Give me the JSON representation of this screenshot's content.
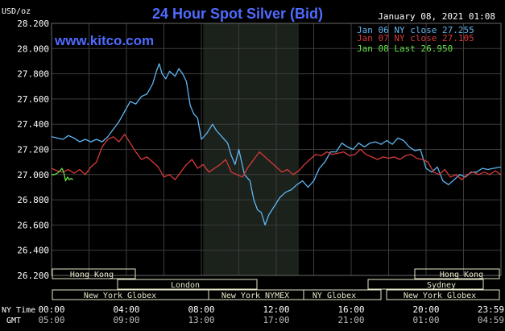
{
  "header": {
    "unit": "USD/oz",
    "title": "24 Hour Spot Silver (Bid)",
    "timestamp": "January 08, 2021 01:08",
    "watermark": "www.kitco.com"
  },
  "legend": [
    {
      "text": "Jan 06 NY close 27.255",
      "color": "#5fb6f2"
    },
    {
      "text": "Jan 07 NY close 27.105",
      "color": "#d63a3a"
    },
    {
      "text": "Jan 08 Last 26.950",
      "color": "#66e04a"
    }
  ],
  "axis": {
    "y_ticks": [
      "28.200",
      "28.000",
      "27.800",
      "27.600",
      "27.400",
      "27.200",
      "27.000",
      "26.800",
      "26.600",
      "26.400",
      "26.200"
    ],
    "ny_time_label": "NY Time",
    "gmt_label": "GMT",
    "ny_times": [
      "00:00",
      "04:00",
      "08:00",
      "12:00",
      "16:00",
      "20:00",
      "23:59"
    ],
    "gmt_times": [
      "05:00",
      "09:00",
      "13:00",
      "17:00",
      "21:00",
      "01:00",
      "04:59"
    ]
  },
  "sessions": {
    "hong_kong_left": "Hong Kong",
    "hong_kong_right": "Hong Kong",
    "london": "London",
    "sydney": "Sydney",
    "ny_globex_left": "New York Globex",
    "ny_nymex": "New York NYMEX",
    "ny_globex_mid": "NY Globex",
    "ny_globex_right": "New York Globex"
  },
  "colors": {
    "background": "#000000",
    "grid": "#3c3c3c",
    "title": "#4f6bff",
    "highlight": "#1b211b",
    "session_box": "#e6e6c8"
  },
  "chart_data": {
    "type": "line",
    "x_unit": "hours since 00:00 NY time",
    "xlim": [
      0,
      24
    ],
    "ylim": [
      26.2,
      28.2
    ],
    "grid": true,
    "highlight_hours": [
      8.1,
      13.2
    ],
    "series": [
      {
        "name": "Jan 06",
        "color": "#5fb6f2",
        "points": [
          [
            0,
            27.3
          ],
          [
            0.3,
            27.29
          ],
          [
            0.6,
            27.28
          ],
          [
            0.9,
            27.31
          ],
          [
            1.2,
            27.29
          ],
          [
            1.5,
            27.26
          ],
          [
            1.8,
            27.28
          ],
          [
            2.1,
            27.26
          ],
          [
            2.4,
            27.28
          ],
          [
            2.7,
            27.26
          ],
          [
            3.0,
            27.3
          ],
          [
            3.3,
            27.36
          ],
          [
            3.6,
            27.42
          ],
          [
            3.9,
            27.5
          ],
          [
            4.2,
            27.58
          ],
          [
            4.5,
            27.56
          ],
          [
            4.8,
            27.62
          ],
          [
            5.1,
            27.64
          ],
          [
            5.4,
            27.72
          ],
          [
            5.6,
            27.82
          ],
          [
            5.75,
            27.88
          ],
          [
            5.9,
            27.8
          ],
          [
            6.1,
            27.76
          ],
          [
            6.3,
            27.82
          ],
          [
            6.6,
            27.78
          ],
          [
            6.8,
            27.84
          ],
          [
            7.0,
            27.8
          ],
          [
            7.2,
            27.74
          ],
          [
            7.4,
            27.55
          ],
          [
            7.6,
            27.48
          ],
          [
            7.8,
            27.45
          ],
          [
            8.0,
            27.28
          ],
          [
            8.3,
            27.33
          ],
          [
            8.6,
            27.4
          ],
          [
            8.8,
            27.35
          ],
          [
            9.1,
            27.3
          ],
          [
            9.4,
            27.25
          ],
          [
            9.6,
            27.15
          ],
          [
            9.8,
            27.08
          ],
          [
            10.0,
            27.2
          ],
          [
            10.3,
            27.0
          ],
          [
            10.6,
            26.95
          ],
          [
            10.8,
            26.8
          ],
          [
            11.0,
            26.72
          ],
          [
            11.2,
            26.7
          ],
          [
            11.4,
            26.6
          ],
          [
            11.6,
            26.68
          ],
          [
            11.9,
            26.75
          ],
          [
            12.2,
            26.82
          ],
          [
            12.5,
            26.86
          ],
          [
            12.8,
            26.88
          ],
          [
            13.1,
            26.92
          ],
          [
            13.4,
            26.95
          ],
          [
            13.7,
            26.9
          ],
          [
            14.0,
            26.95
          ],
          [
            14.3,
            27.05
          ],
          [
            14.6,
            27.1
          ],
          [
            14.9,
            27.18
          ],
          [
            15.2,
            27.18
          ],
          [
            15.5,
            27.25
          ],
          [
            15.8,
            27.22
          ],
          [
            16.1,
            27.2
          ],
          [
            16.4,
            27.25
          ],
          [
            16.7,
            27.22
          ],
          [
            17.0,
            27.25
          ],
          [
            17.3,
            27.26
          ],
          [
            17.6,
            27.24
          ],
          [
            17.9,
            27.27
          ],
          [
            18.2,
            27.24
          ],
          [
            18.5,
            27.29
          ],
          [
            18.8,
            27.27
          ],
          [
            19.1,
            27.22
          ],
          [
            19.4,
            27.19
          ],
          [
            19.7,
            27.2
          ],
          [
            20.0,
            27.05
          ],
          [
            20.3,
            27.02
          ],
          [
            20.6,
            27.06
          ],
          [
            20.9,
            26.95
          ],
          [
            21.2,
            26.92
          ],
          [
            21.5,
            26.96
          ],
          [
            21.8,
            27.0
          ],
          [
            22.1,
            26.98
          ],
          [
            22.4,
            27.02
          ],
          [
            22.7,
            27.02
          ],
          [
            23.0,
            27.05
          ],
          [
            23.3,
            27.04
          ],
          [
            23.6,
            27.05
          ],
          [
            23.99,
            27.06
          ]
        ]
      },
      {
        "name": "Jan 07",
        "color": "#d63a3a",
        "points": [
          [
            0,
            27.05
          ],
          [
            0.3,
            27.03
          ],
          [
            0.6,
            27.02
          ],
          [
            0.9,
            27.04
          ],
          [
            1.2,
            27.01
          ],
          [
            1.5,
            27.04
          ],
          [
            1.8,
            27.0
          ],
          [
            2.1,
            27.06
          ],
          [
            2.4,
            27.1
          ],
          [
            2.7,
            27.22
          ],
          [
            3.0,
            27.28
          ],
          [
            3.3,
            27.3
          ],
          [
            3.6,
            27.26
          ],
          [
            3.9,
            27.32
          ],
          [
            4.2,
            27.25
          ],
          [
            4.5,
            27.18
          ],
          [
            4.8,
            27.12
          ],
          [
            5.1,
            27.14
          ],
          [
            5.4,
            27.1
          ],
          [
            5.7,
            27.06
          ],
          [
            6.0,
            26.98
          ],
          [
            6.3,
            27.0
          ],
          [
            6.6,
            26.96
          ],
          [
            6.9,
            27.02
          ],
          [
            7.2,
            27.08
          ],
          [
            7.5,
            27.12
          ],
          [
            7.8,
            27.05
          ],
          [
            8.1,
            27.08
          ],
          [
            8.4,
            27.02
          ],
          [
            8.7,
            27.05
          ],
          [
            9.0,
            27.08
          ],
          [
            9.3,
            27.12
          ],
          [
            9.6,
            27.02
          ],
          [
            9.9,
            27.0
          ],
          [
            10.2,
            26.98
          ],
          [
            10.5,
            27.06
          ],
          [
            10.8,
            27.12
          ],
          [
            11.1,
            27.18
          ],
          [
            11.4,
            27.14
          ],
          [
            11.7,
            27.1
          ],
          [
            12.0,
            27.06
          ],
          [
            12.3,
            27.02
          ],
          [
            12.6,
            27.04
          ],
          [
            12.9,
            27.0
          ],
          [
            13.2,
            27.03
          ],
          [
            13.5,
            27.08
          ],
          [
            13.8,
            27.12
          ],
          [
            14.1,
            27.16
          ],
          [
            14.4,
            27.15
          ],
          [
            14.7,
            27.18
          ],
          [
            15.0,
            27.16
          ],
          [
            15.3,
            27.17
          ],
          [
            15.6,
            27.18
          ],
          [
            15.9,
            27.15
          ],
          [
            16.2,
            27.16
          ],
          [
            16.5,
            27.2
          ],
          [
            16.8,
            27.16
          ],
          [
            17.1,
            27.14
          ],
          [
            17.4,
            27.12
          ],
          [
            17.7,
            27.14
          ],
          [
            18.0,
            27.13
          ],
          [
            18.3,
            27.14
          ],
          [
            18.6,
            27.12
          ],
          [
            18.9,
            27.15
          ],
          [
            19.2,
            27.16
          ],
          [
            19.5,
            27.13
          ],
          [
            19.8,
            27.12
          ],
          [
            20.1,
            27.1
          ],
          [
            20.4,
            27.02
          ],
          [
            20.7,
            27.0
          ],
          [
            21.0,
            27.04
          ],
          [
            21.3,
            26.98
          ],
          [
            21.6,
            27.0
          ],
          [
            21.9,
            26.96
          ],
          [
            22.2,
            27.0
          ],
          [
            22.5,
            27.02
          ],
          [
            22.8,
            27.0
          ],
          [
            23.1,
            27.02
          ],
          [
            23.4,
            27.0
          ],
          [
            23.7,
            27.03
          ],
          [
            23.99,
            27.0
          ]
        ]
      },
      {
        "name": "Jan 08",
        "color": "#66e04a",
        "points": [
          [
            0,
            27.0
          ],
          [
            0.15,
            27.0
          ],
          [
            0.3,
            27.01
          ],
          [
            0.45,
            27.03
          ],
          [
            0.55,
            27.05
          ],
          [
            0.65,
            27.02
          ],
          [
            0.75,
            26.95
          ],
          [
            0.85,
            26.98
          ],
          [
            0.95,
            26.96
          ],
          [
            1.05,
            26.97
          ],
          [
            1.15,
            26.96
          ]
        ]
      }
    ]
  }
}
